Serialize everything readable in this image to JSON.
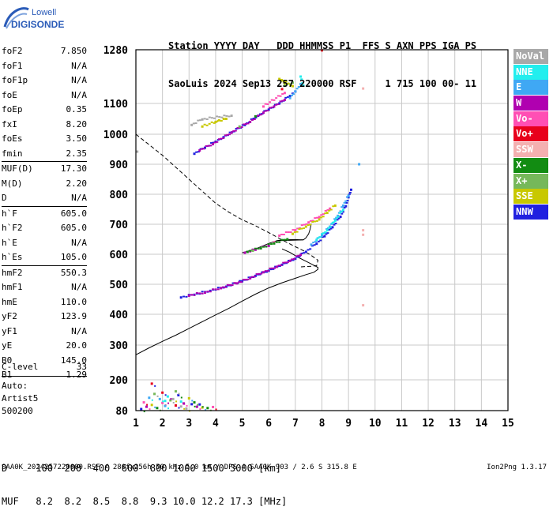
{
  "logo": {
    "line1": "Lowell",
    "line2": "DIGISONDE"
  },
  "header": {
    "row1": "Station YYYY DAY   DDD HHMMSS P1  FFS S AXN PPS IGA PS",
    "row2": "SaoLuis 2024 Sep13 257 220000 RSF     1 715 100 00- 11"
  },
  "params": [
    {
      "k": "foF2",
      "v": "7.850"
    },
    {
      "k": "foF1",
      "v": "N/A"
    },
    {
      "k": "foF1p",
      "v": "N/A"
    },
    {
      "k": "foE",
      "v": "N/A"
    },
    {
      "k": "foEp",
      "v": "0.35"
    },
    {
      "k": "fxI",
      "v": "8.20"
    },
    {
      "k": "foEs",
      "v": "3.50"
    },
    {
      "k": "fmin",
      "v": "2.35"
    },
    {
      "sep": true
    },
    {
      "k": "MUF(D)",
      "v": "17.30"
    },
    {
      "k": "M(D)",
      "v": "2.20"
    },
    {
      "k": "D",
      "v": "N/A"
    },
    {
      "sep": true
    },
    {
      "k": "h`F",
      "v": "605.0"
    },
    {
      "k": "h`F2",
      "v": "605.0"
    },
    {
      "k": "h`E",
      "v": "N/A"
    },
    {
      "k": "h`Es",
      "v": "105.0"
    },
    {
      "sep": true
    },
    {
      "k": "hmF2",
      "v": "550.3"
    },
    {
      "k": "hmF1",
      "v": "N/A"
    },
    {
      "k": "hmE",
      "v": "110.0"
    },
    {
      "k": "yF2",
      "v": "123.9"
    },
    {
      "k": "yF1",
      "v": "N/A"
    },
    {
      "k": "yE",
      "v": "20.0"
    },
    {
      "k": "B0",
      "v": "145.0"
    },
    {
      "k": "B1",
      "v": "1.29"
    }
  ],
  "clevel": {
    "k": "C-level",
    "v": "33"
  },
  "auto": {
    "line1": "Auto:",
    "line2": "Artist5",
    "line3": "500200"
  },
  "legend": [
    {
      "label": "NoVal",
      "color": "#a8a8a8"
    },
    {
      "label": "NNE",
      "color": "#22eeee"
    },
    {
      "label": "E",
      "color": "#3fa8f4"
    },
    {
      "label": "W",
      "color": "#b000b0"
    },
    {
      "label": "Vo-",
      "color": "#ff4fb4"
    },
    {
      "label": "Vo+",
      "color": "#e8001c"
    },
    {
      "label": "SSW",
      "color": "#f4b0b0"
    },
    {
      "label": "X-",
      "color": "#128c12"
    },
    {
      "label": "X+",
      "color": "#76b85a"
    },
    {
      "label": "SSE",
      "color": "#c8c800"
    },
    {
      "label": "NNW",
      "color": "#2020e0"
    }
  ],
  "bottom": {
    "row1": "D     100  200  400  600  800 1000 1500 3000 [km]",
    "row2": "MUF   8.2  8.2  8.5  8.8  9.3 10.0 12.2 17.3 [MHz]"
  },
  "footer": {
    "left": "SAA0K_2024257220000.RSF / 280fx256h 50 kHz 5.0 km / DPS-4 SAA0K 903 / 2.6 S 315.8 E",
    "right": "Ion2Png 1.3.17"
  },
  "chart_data": {
    "type": "scatter",
    "xlim": [
      1,
      15
    ],
    "ylim": [
      80,
      1280
    ],
    "xticks": [
      "1",
      "2",
      "3",
      "4",
      "5",
      "6",
      "7",
      "8",
      "9",
      "10",
      "11",
      "12",
      "13",
      "14",
      "15"
    ],
    "yticks": [
      "80",
      "200",
      "300",
      "400",
      "500",
      "600",
      "700",
      "800",
      "900",
      "1000",
      "1100",
      "1280"
    ],
    "grid": true,
    "series": [
      {
        "name": "NNW",
        "color": "#2020e0",
        "points": [
          [
            2.7,
            456
          ],
          [
            3.2,
            465
          ],
          [
            3.8,
            478
          ],
          [
            4.4,
            492
          ],
          [
            5.0,
            510
          ],
          [
            5.5,
            528
          ],
          [
            6.0,
            545
          ],
          [
            6.5,
            565
          ],
          [
            7.0,
            585
          ],
          [
            7.4,
            608
          ],
          [
            7.8,
            635
          ],
          [
            8.1,
            660
          ],
          [
            8.4,
            690
          ],
          [
            8.7,
            725
          ],
          [
            8.9,
            760
          ],
          [
            9.0,
            790
          ],
          [
            9.1,
            815
          ],
          [
            3.2,
            935
          ],
          [
            3.6,
            955
          ],
          [
            4.0,
            975
          ],
          [
            4.3,
            990
          ],
          [
            5.1,
            1030
          ],
          [
            5.6,
            1060
          ],
          [
            6.0,
            1080
          ],
          [
            6.4,
            1100
          ],
          [
            6.8,
            1125
          ],
          [
            7.0,
            1140
          ]
        ]
      },
      {
        "name": "W",
        "color": "#b000b0",
        "points": [
          [
            3.0,
            462
          ],
          [
            3.6,
            472
          ],
          [
            4.2,
            487
          ],
          [
            4.8,
            503
          ],
          [
            5.3,
            520
          ],
          [
            5.8,
            540
          ],
          [
            6.3,
            558
          ],
          [
            6.8,
            578
          ],
          [
            7.2,
            598
          ],
          [
            3.4,
            946
          ],
          [
            3.9,
            967
          ],
          [
            4.6,
            1005
          ],
          [
            5.3,
            1040
          ],
          [
            5.8,
            1070
          ],
          [
            6.2,
            1090
          ],
          [
            6.6,
            1112
          ],
          [
            5.1,
            605
          ],
          [
            5.5,
            615
          ],
          [
            6.0,
            628
          ]
        ]
      },
      {
        "name": "E",
        "color": "#3fa8f4",
        "points": [
          [
            7.6,
            632
          ],
          [
            8.0,
            662
          ],
          [
            8.3,
            692
          ],
          [
            8.6,
            728
          ],
          [
            8.8,
            762
          ],
          [
            9.0,
            795
          ],
          [
            6.8,
            1118
          ],
          [
            7.0,
            1140
          ],
          [
            7.2,
            1165
          ],
          [
            9.4,
            900
          ]
        ]
      },
      {
        "name": "NNE",
        "color": "#22eeee",
        "points": [
          [
            7.8,
            648
          ],
          [
            8.2,
            680
          ],
          [
            8.5,
            712
          ],
          [
            8.8,
            748
          ],
          [
            7.2,
            1190
          ],
          [
            7.3,
            1160
          ]
        ]
      },
      {
        "name": "Vo-",
        "color": "#ff4fb4",
        "points": [
          [
            6.4,
            662
          ],
          [
            7.0,
            680
          ],
          [
            7.5,
            706
          ],
          [
            7.9,
            724
          ],
          [
            8.3,
            752
          ],
          [
            6.2,
            640
          ],
          [
            6.6,
            1135
          ],
          [
            5.8,
            1090
          ]
        ]
      },
      {
        "name": "Vo+",
        "color": "#e8001c",
        "points": [
          [
            8.0,
            1278
          ],
          [
            6.5,
            1148
          ]
        ]
      },
      {
        "name": "X-",
        "color": "#128c12",
        "points": [
          [
            5.2,
            608
          ],
          [
            5.7,
            620
          ],
          [
            6.2,
            636
          ],
          [
            6.7,
            650
          ],
          [
            5.5,
            1058
          ]
        ]
      },
      {
        "name": "X+",
        "color": "#76b85a",
        "points": [
          [
            5.4,
            612
          ],
          [
            6.6,
            1160
          ],
          [
            6.9,
            1170
          ],
          [
            4.9,
            1025
          ]
        ]
      },
      {
        "name": "SSE",
        "color": "#c8c800",
        "points": [
          [
            6.9,
            668
          ],
          [
            7.4,
            692
          ],
          [
            7.9,
            716
          ],
          [
            8.2,
            738
          ],
          [
            8.5,
            762
          ],
          [
            6.6,
            1168
          ],
          [
            6.4,
            1182
          ],
          [
            6.9,
            1158
          ],
          [
            4.0,
            1040
          ],
          [
            4.4,
            1050
          ],
          [
            3.5,
            1025
          ]
        ]
      },
      {
        "name": "SSW",
        "color": "#f4b0b0",
        "points": [
          [
            9.55,
            1150
          ],
          [
            9.55,
            680
          ],
          [
            9.55,
            665
          ],
          [
            9.55,
            430
          ]
        ]
      },
      {
        "name": "NoVal",
        "color": "#a8a8a8",
        "points": [
          [
            3.1,
            1030
          ],
          [
            3.5,
            1048
          ],
          [
            4.6,
            1060
          ],
          [
            1.05,
            942
          ]
        ]
      }
    ],
    "es_clutter": [
      [
        1.2,
        86
      ],
      [
        1.4,
        95
      ],
      [
        1.6,
        102
      ],
      [
        1.8,
        90
      ],
      [
        2.0,
        110
      ],
      [
        2.1,
        98
      ],
      [
        2.3,
        120
      ],
      [
        2.5,
        100
      ],
      [
        2.7,
        115
      ],
      [
        2.9,
        88
      ],
      [
        3.1,
        105
      ],
      [
        3.3,
        95
      ],
      [
        3.5,
        92
      ],
      [
        3.7,
        90
      ],
      [
        3.9,
        94
      ],
      [
        1.5,
        130
      ],
      [
        1.7,
        145
      ],
      [
        2.0,
        150
      ],
      [
        2.2,
        135
      ],
      [
        2.4,
        125
      ],
      [
        2.6,
        140
      ],
      [
        2.8,
        108
      ],
      [
        3.0,
        128
      ],
      [
        3.2,
        112
      ],
      [
        1.3,
        112
      ],
      [
        1.9,
        125
      ],
      [
        2.5,
        155
      ],
      [
        1.6,
        185
      ],
      [
        2.1,
        118
      ],
      [
        2.7,
        96
      ],
      [
        3.4,
        104
      ]
    ],
    "es_colors": [
      "#2020e0",
      "#b000b0",
      "#c8c800",
      "#128c12",
      "#ff4fb4",
      "#3fa8f4",
      "#76b85a",
      "#e8001c",
      "#22eeee",
      "#a8a8a8"
    ],
    "profile_line": [
      [
        1,
        272
      ],
      [
        1.5,
        292
      ],
      [
        2.0,
        312
      ],
      [
        2.5,
        332
      ],
      [
        3.0,
        354
      ],
      [
        3.5,
        376
      ],
      [
        4.0,
        398
      ],
      [
        4.5,
        420
      ],
      [
        5.0,
        444
      ],
      [
        5.5,
        467
      ],
      [
        6.0,
        488
      ],
      [
        6.5,
        505
      ],
      [
        7.0,
        520
      ],
      [
        7.4,
        532
      ],
      [
        7.7,
        540
      ],
      [
        7.85,
        550
      ],
      [
        7.85,
        556
      ],
      [
        7.5,
        572
      ],
      [
        7.1,
        590
      ],
      [
        6.8,
        606
      ],
      [
        6.5,
        618
      ]
    ],
    "trace_line": [
      [
        5.0,
        605
      ],
      [
        5.5,
        618
      ],
      [
        6.0,
        636
      ],
      [
        6.3,
        645
      ],
      [
        7.3,
        648
      ],
      [
        7.4,
        655
      ],
      [
        7.5,
        668
      ],
      [
        7.55,
        682
      ],
      [
        7.6,
        702
      ]
    ],
    "trace_flat": [
      [
        6.3,
        645
      ],
      [
        6.5,
        648
      ],
      [
        7.0,
        649
      ],
      [
        7.3,
        648
      ]
    ],
    "muf_curve": [
      [
        1,
        1000
      ],
      [
        1.5,
        965
      ],
      [
        2.0,
        930
      ],
      [
        2.5,
        890
      ],
      [
        3.0,
        850
      ],
      [
        3.5,
        810
      ],
      [
        4.0,
        770
      ],
      [
        4.5,
        740
      ],
      [
        5.0,
        715
      ],
      [
        5.5,
        695
      ],
      [
        6.0,
        672
      ],
      [
        6.5,
        648
      ],
      [
        7.0,
        625
      ],
      [
        7.3,
        612
      ],
      [
        7.6,
        596
      ],
      [
        7.85,
        580
      ],
      [
        7.8,
        562
      ],
      [
        7.6,
        560
      ],
      [
        7.2,
        558
      ]
    ]
  }
}
